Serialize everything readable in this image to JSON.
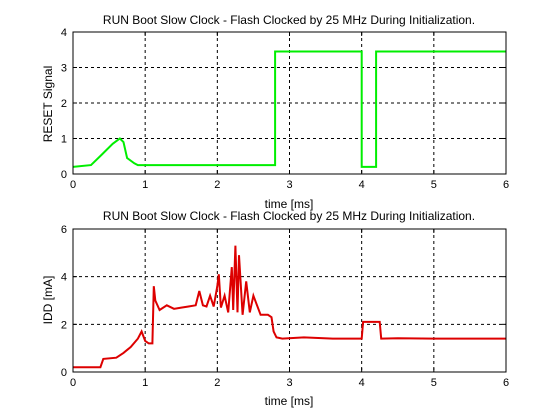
{
  "chart_data": [
    {
      "type": "line",
      "title": "RUN Boot Slow Clock - Flash Clocked by 25 MHz During Initialization.",
      "xlabel": "time [ms]",
      "ylabel": "RESET Signal",
      "xlim": [
        0,
        6
      ],
      "ylim": [
        0,
        4
      ],
      "xticks": [
        "0",
        "1",
        "2",
        "3",
        "4",
        "5",
        "6"
      ],
      "yticks": [
        "0",
        "1",
        "2",
        "3",
        "4"
      ],
      "grid": true,
      "color": "#00ee00",
      "x": [
        0,
        0.25,
        0.4,
        0.55,
        0.65,
        0.7,
        0.75,
        0.85,
        0.9,
        2.8,
        2.8,
        4.0,
        4.0,
        4.2,
        4.2,
        6.0
      ],
      "y": [
        0.2,
        0.25,
        0.55,
        0.85,
        1.0,
        0.9,
        0.45,
        0.3,
        0.25,
        0.25,
        3.45,
        3.45,
        0.2,
        0.2,
        3.45,
        3.45
      ]
    },
    {
      "type": "line",
      "title": "RUN Boot Slow Clock - Flash Clocked by 25 MHz During Initialization.",
      "xlabel": "time [ms]",
      "ylabel": "IDD [mA]",
      "xlim": [
        0,
        6
      ],
      "ylim": [
        0,
        6
      ],
      "xticks": [
        "0",
        "1",
        "2",
        "3",
        "4",
        "5",
        "6"
      ],
      "yticks": [
        "0",
        "2",
        "4",
        "6"
      ],
      "grid": true,
      "color": "#dd0000",
      "x": [
        0,
        0.38,
        0.42,
        0.6,
        0.7,
        0.8,
        0.9,
        0.95,
        1.0,
        1.05,
        1.1,
        1.12,
        1.14,
        1.2,
        1.3,
        1.4,
        1.5,
        1.6,
        1.7,
        1.75,
        1.8,
        1.85,
        1.9,
        1.95,
        2.0,
        2.02,
        2.05,
        2.1,
        2.15,
        2.2,
        2.22,
        2.25,
        2.28,
        2.3,
        2.35,
        2.4,
        2.45,
        2.5,
        2.6,
        2.7,
        2.75,
        2.78,
        2.82,
        2.9,
        3.2,
        3.6,
        4.0,
        4.02,
        4.25,
        4.27,
        4.5,
        5.0,
        6.0
      ],
      "y": [
        0.2,
        0.2,
        0.55,
        0.6,
        0.8,
        1.05,
        1.4,
        1.7,
        1.3,
        1.2,
        1.2,
        3.6,
        3.0,
        2.6,
        2.8,
        2.65,
        2.7,
        2.75,
        2.8,
        3.4,
        2.8,
        2.75,
        3.2,
        2.75,
        3.6,
        4.1,
        2.7,
        3.2,
        2.5,
        4.4,
        2.6,
        5.3,
        2.5,
        4.9,
        2.4,
        3.8,
        2.5,
        3.2,
        2.4,
        2.4,
        2.3,
        1.7,
        1.45,
        1.4,
        1.45,
        1.4,
        1.4,
        2.1,
        2.1,
        1.4,
        1.42,
        1.4,
        1.4
      ]
    }
  ]
}
